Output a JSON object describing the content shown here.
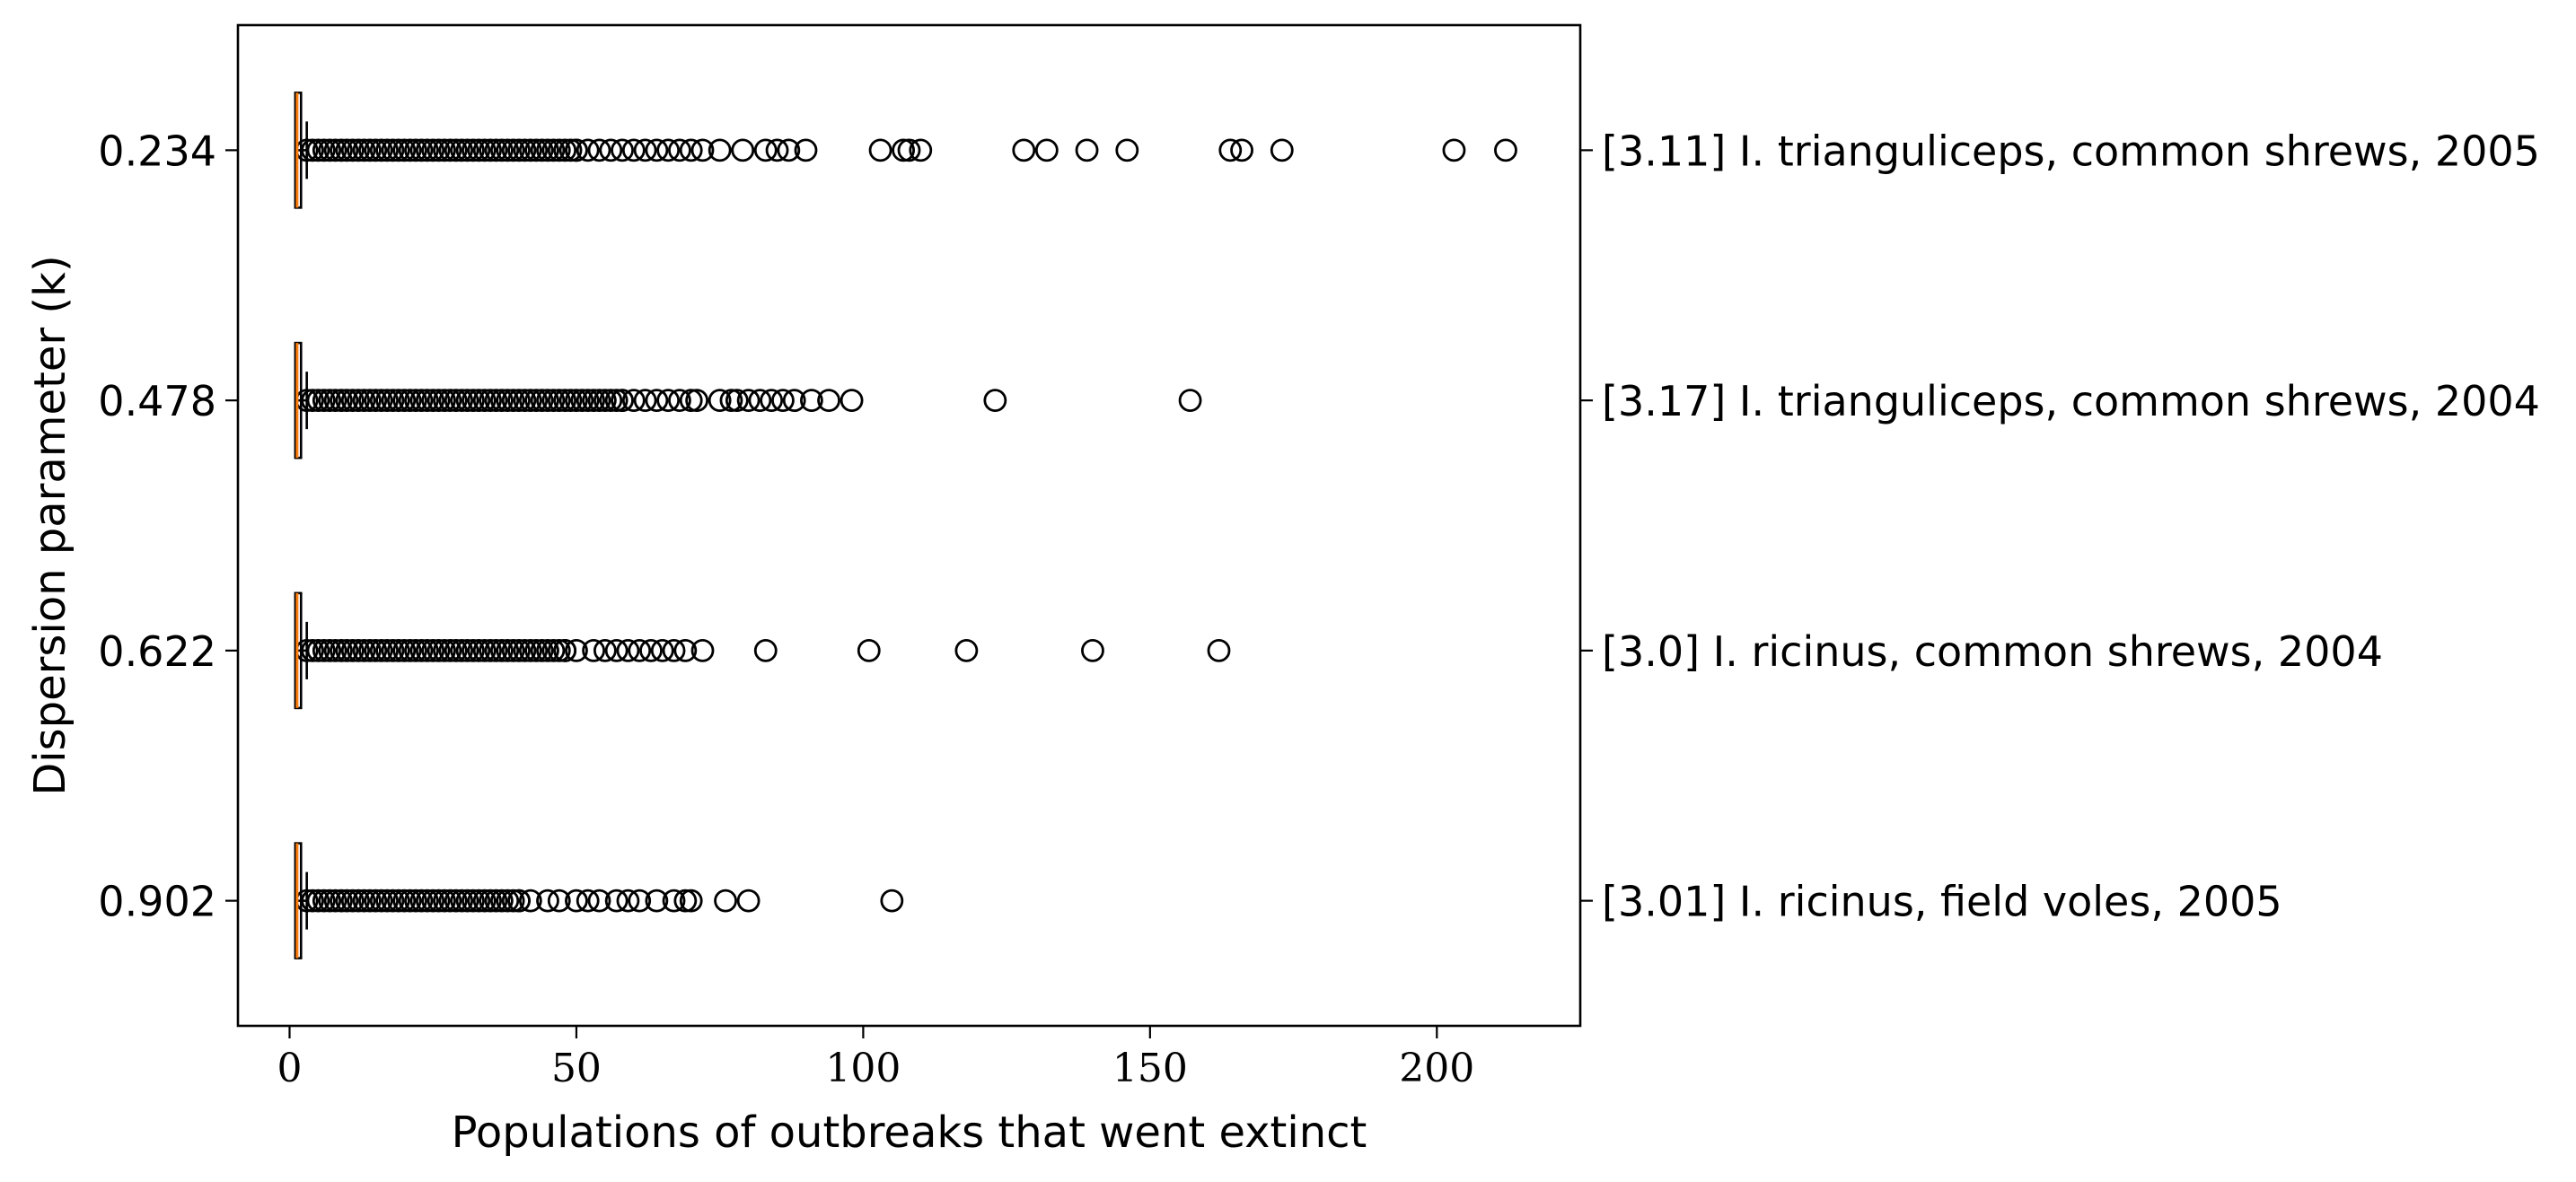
{
  "chart_data": {
    "type": "boxplot",
    "orientation": "horizontal",
    "xlabel": "Populations of outbreaks that went extinct",
    "ylabel": "Dispersion parameter (k)",
    "xlim": [
      -9,
      225
    ],
    "xticks": [
      0,
      50,
      100,
      150,
      200
    ],
    "grid": false,
    "series": [
      {
        "k_label": "0.234",
        "right_label": "[3.11] I. trianguliceps, common shrews, 2005",
        "box": {
          "q1": 1,
          "median": 1,
          "q3": 2
        },
        "whiskers": [
          1,
          3
        ],
        "dense_outlier_range": [
          3,
          50
        ],
        "outliers": [
          50,
          52,
          54,
          56,
          58,
          60,
          62,
          64,
          66,
          68,
          70,
          72,
          75,
          79,
          83,
          85,
          87,
          90,
          103,
          107,
          108,
          110,
          128,
          132,
          139,
          146,
          164,
          166,
          173,
          203,
          212
        ]
      },
      {
        "k_label": "0.478",
        "right_label": "[3.17] I. trianguliceps, common shrews, 2004",
        "box": {
          "q1": 1,
          "median": 1,
          "q3": 2
        },
        "whiskers": [
          1,
          3
        ],
        "dense_outlier_range": [
          3,
          58
        ],
        "outliers": [
          58,
          60,
          62,
          64,
          66,
          68,
          70,
          71,
          75,
          77,
          78,
          80,
          82,
          84,
          86,
          88,
          91,
          94,
          98,
          123,
          157
        ]
      },
      {
        "k_label": "0.622",
        "right_label": "[3.0] I. ricinus, common shrews, 2004",
        "box": {
          "q1": 1,
          "median": 1,
          "q3": 2
        },
        "whiskers": [
          1,
          3
        ],
        "dense_outlier_range": [
          3,
          48
        ],
        "outliers": [
          48,
          50,
          53,
          55,
          57,
          59,
          61,
          63,
          65,
          67,
          69,
          72,
          83,
          101,
          118,
          140,
          162
        ]
      },
      {
        "k_label": "0.902",
        "right_label": "[3.01] I. ricinus, field voles, 2005",
        "box": {
          "q1": 1,
          "median": 1,
          "q3": 2
        },
        "whiskers": [
          1,
          3
        ],
        "dense_outlier_range": [
          3,
          40
        ],
        "outliers": [
          40,
          42,
          45,
          47,
          50,
          52,
          54,
          57,
          59,
          61,
          64,
          67,
          69,
          70,
          76,
          80,
          105
        ]
      }
    ],
    "colors": {
      "median": "#ff7f0e",
      "box": "#000000",
      "outlier": "#000000"
    }
  }
}
